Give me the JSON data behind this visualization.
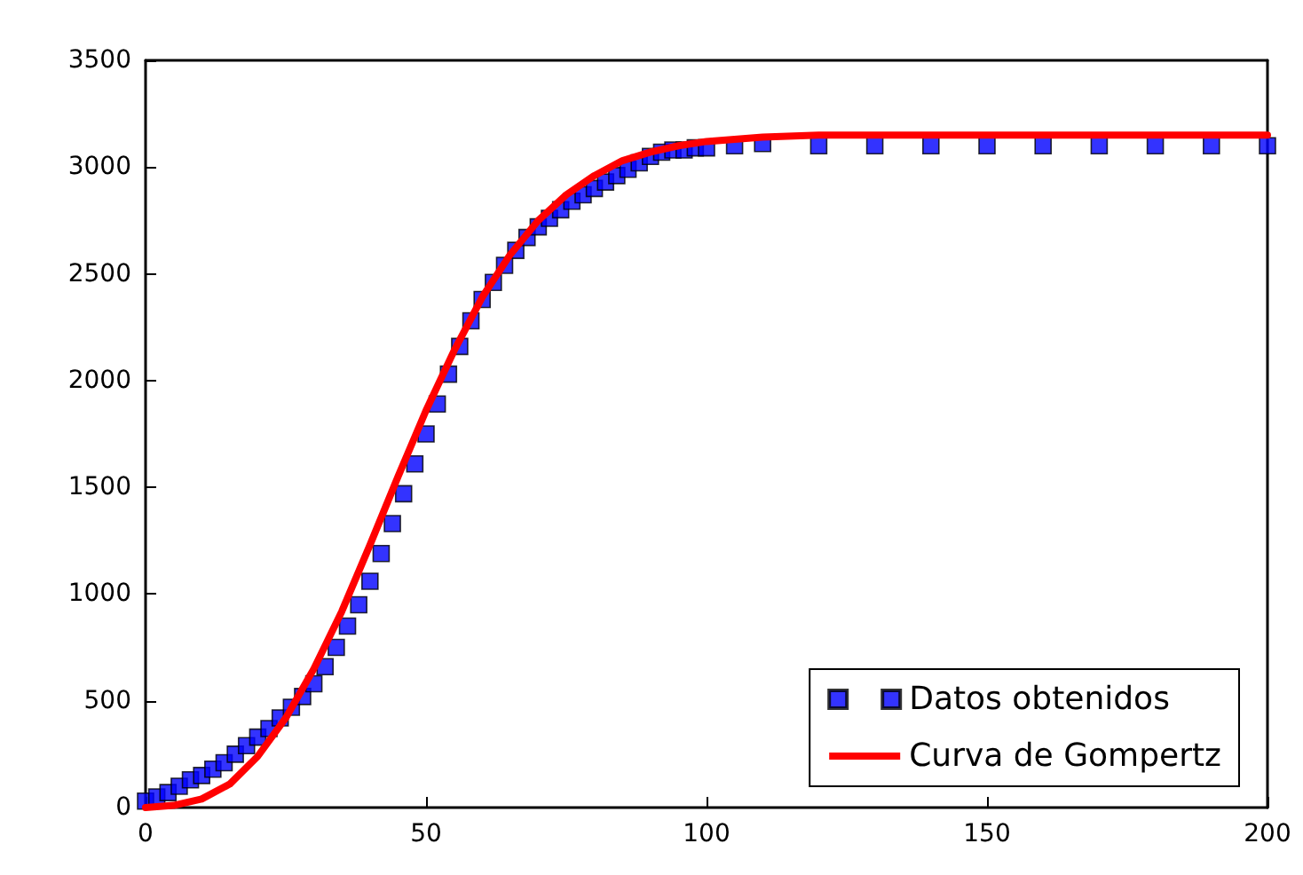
{
  "chart_data": {
    "type": "scatter",
    "xlim": [
      0,
      200
    ],
    "ylim": [
      0,
      3500
    ],
    "xticks": [
      0,
      50,
      100,
      150,
      200
    ],
    "yticks": [
      0,
      500,
      1000,
      1500,
      2000,
      2500,
      3000,
      3500
    ],
    "grid": false,
    "legend": "bottom right",
    "series": [
      {
        "name": "Datos obtenidos",
        "marker": "square",
        "color": "#0000ff",
        "x": [
          0,
          2,
          4,
          6,
          8,
          10,
          12,
          14,
          16,
          18,
          20,
          22,
          24,
          26,
          28,
          30,
          32,
          34,
          36,
          38,
          40,
          42,
          44,
          46,
          48,
          50,
          52,
          54,
          56,
          58,
          60,
          62,
          64,
          66,
          68,
          70,
          72,
          74,
          76,
          78,
          80,
          82,
          84,
          86,
          88,
          90,
          92,
          94,
          96,
          98,
          100,
          105,
          110,
          120,
          130,
          140,
          150,
          160,
          170,
          180,
          190,
          200
        ],
        "values": [
          30,
          50,
          70,
          100,
          130,
          150,
          180,
          210,
          250,
          290,
          330,
          370,
          420,
          470,
          520,
          580,
          660,
          750,
          850,
          950,
          1060,
          1190,
          1330,
          1470,
          1610,
          1750,
          1890,
          2030,
          2160,
          2280,
          2380,
          2460,
          2540,
          2610,
          2670,
          2720,
          2760,
          2800,
          2840,
          2870,
          2900,
          2930,
          2960,
          2990,
          3020,
          3050,
          3070,
          3080,
          3080,
          3090,
          3090,
          3100,
          3110,
          3100,
          3100,
          3100,
          3100,
          3100,
          3100,
          3100,
          3100,
          3100
        ]
      },
      {
        "name": "Curva de Gompertz",
        "type": "line",
        "marker": "none",
        "line_style": "solid",
        "color": "#ff0000",
        "x": [
          0,
          5,
          10,
          15,
          20,
          25,
          30,
          35,
          40,
          45,
          50,
          55,
          60,
          65,
          70,
          75,
          80,
          85,
          90,
          95,
          100,
          110,
          120,
          140,
          160,
          180,
          200
        ],
        "values": [
          0,
          10,
          40,
          110,
          240,
          420,
          650,
          920,
          1230,
          1550,
          1860,
          2140,
          2390,
          2590,
          2750,
          2870,
          2960,
          3030,
          3070,
          3100,
          3120,
          3140,
          3150,
          3150,
          3150,
          3150,
          3150
        ]
      }
    ]
  }
}
